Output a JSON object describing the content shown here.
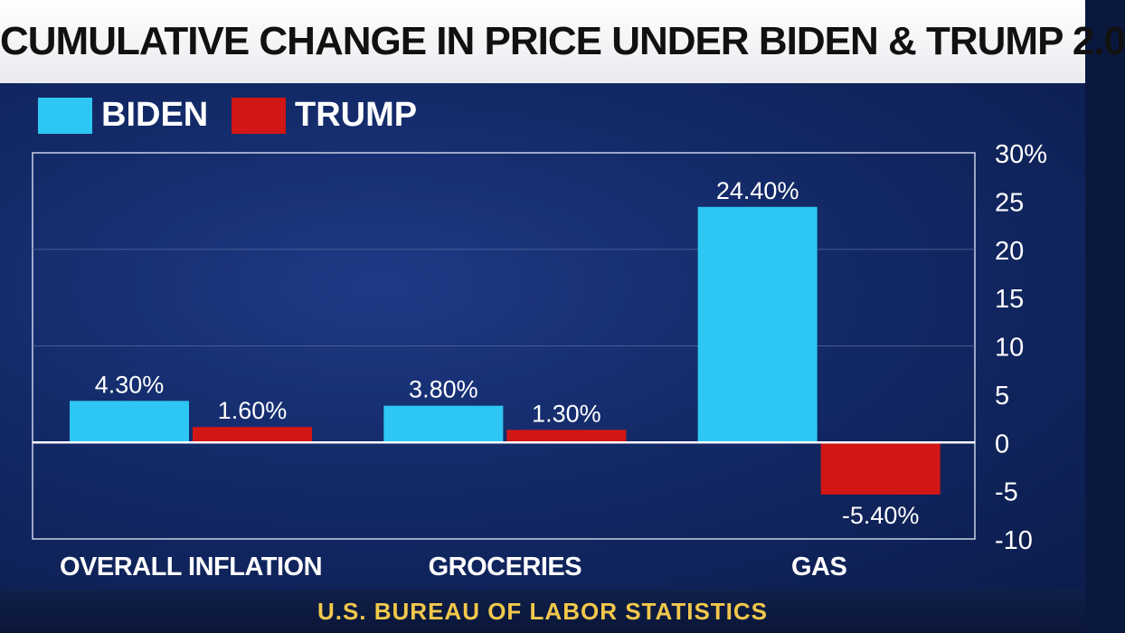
{
  "title": "CUMULATIVE CHANGE IN PRICE UNDER BIDEN & TRUMP 2.0",
  "source": "U.S. BUREAU OF LABOR STATISTICS",
  "colors": {
    "biden": "#2ec7f3",
    "trump": "#d11616"
  },
  "chart_data": {
    "type": "bar",
    "categories": [
      "OVERALL INFLATION",
      "GROCERIES",
      "GAS"
    ],
    "series": [
      {
        "name": "BIDEN",
        "values": [
          4.3,
          3.8,
          24.4
        ],
        "labels": [
          "4.30%",
          "3.80%",
          "24.40%"
        ]
      },
      {
        "name": "TRUMP",
        "values": [
          1.6,
          1.3,
          -5.4
        ],
        "labels": [
          "1.60%",
          "1.30%",
          "-5.40%"
        ]
      }
    ],
    "ylim": [
      -10,
      30
    ],
    "yticks": [
      "30%",
      "25",
      "20",
      "15",
      "10",
      "5",
      "0",
      "-5",
      "-10"
    ],
    "legend_position": "top-left",
    "grid": true
  }
}
